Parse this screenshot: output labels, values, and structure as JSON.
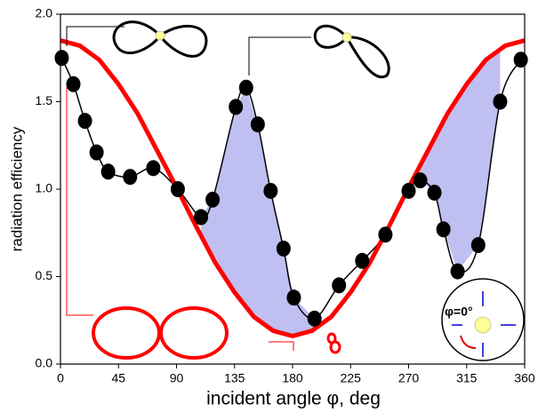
{
  "chart_data": {
    "type": "line",
    "x_label": "incident angle φ, deg",
    "y_label": "radiation efficiency",
    "annotation": "φ=0°",
    "xlim": [
      0,
      360
    ],
    "xticks": [
      0,
      45,
      90,
      135,
      180,
      225,
      270,
      315,
      360
    ],
    "ylim": [
      0,
      2
    ],
    "yticks": [
      {
        "value": 0,
        "label": "0.0"
      },
      {
        "value": 0.5,
        "label": "0.5"
      },
      {
        "value": 1,
        "label": "1.0"
      },
      {
        "value": 1.5,
        "label": "1.5"
      },
      {
        "value": 2,
        "label": "2.0"
      }
    ],
    "series": [
      {
        "color": "#ff0000",
        "x": [
          0,
          15,
          30,
          45,
          60,
          75,
          90,
          105,
          120,
          135,
          150,
          165,
          180,
          195,
          210,
          225,
          240,
          255,
          270,
          285,
          300,
          315,
          330,
          345,
          360
        ],
        "values": [
          1.85,
          1.82,
          1.74,
          1.6,
          1.43,
          1.22,
          1.01,
          0.79,
          0.58,
          0.41,
          0.27,
          0.19,
          0.16,
          0.19,
          0.27,
          0.41,
          0.58,
          0.79,
          1.01,
          1.22,
          1.43,
          1.6,
          1.74,
          1.82,
          1.85
        ]
      },
      {
        "color": "#000000",
        "x": [
          1,
          10,
          19,
          28,
          37,
          54,
          72,
          91,
          109,
          118,
          136,
          144,
          153,
          163,
          173,
          181,
          197,
          216,
          234,
          252,
          270,
          279,
          290,
          297,
          308,
          324,
          341,
          357
        ],
        "values": [
          1.75,
          1.6,
          1.39,
          1.21,
          1.1,
          1.07,
          1.12,
          1.0,
          0.84,
          0.94,
          1.47,
          1.58,
          1.37,
          0.99,
          0.66,
          0.38,
          0.26,
          0.45,
          0.59,
          0.74,
          0.99,
          1.05,
          0.98,
          0.77,
          0.53,
          0.68,
          1.5,
          1.74
        ]
      }
    ]
  }
}
